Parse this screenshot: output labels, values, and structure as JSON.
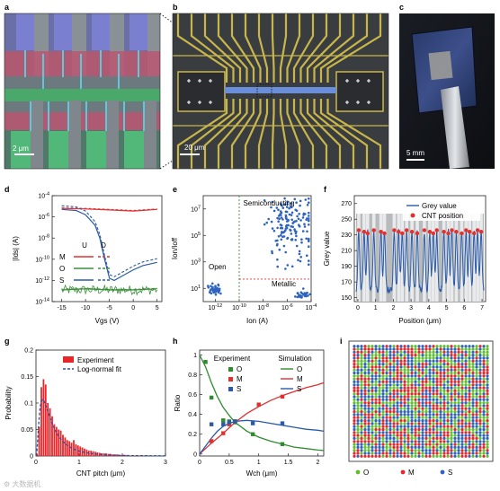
{
  "panels": {
    "a": {
      "letter": "a",
      "scale_bar": "2 μm"
    },
    "b": {
      "letter": "b",
      "scale_bar": "20 μm"
    },
    "c": {
      "letter": "c",
      "scale_bar": "5 mm"
    },
    "d": {
      "letter": "d",
      "legend_header_u": "U",
      "legend_header_d": "D",
      "legend": [
        {
          "label": "M",
          "color": "#e03030"
        },
        {
          "label": "O",
          "color": "#3a8f3a"
        },
        {
          "label": "S",
          "color": "#2a5aa8"
        }
      ],
      "ylabel": "|Ids| (A)",
      "xlabel": "Vgs (V)"
    },
    "e": {
      "letter": "e",
      "annotations": [
        "Semiconducting",
        "Open",
        "Metallic"
      ],
      "ylabel": "Ion/Ioff",
      "xlabel": "Ion (A)"
    },
    "f": {
      "letter": "f",
      "legend": [
        "Grey value",
        "CNT position"
      ],
      "ylabel": "Grey value",
      "xlabel": "Position (μm)"
    },
    "g": {
      "letter": "g",
      "legend": [
        "Experiment",
        "Log-normal fit"
      ],
      "ylabel": "Probability",
      "xlabel": "CNT pitch (μm)"
    },
    "h": {
      "letter": "h",
      "legend_header_exp": "Experiment",
      "legend_header_sim": "Simulation",
      "legend": [
        {
          "label": "O",
          "color": "#2e8b2e"
        },
        {
          "label": "M",
          "color": "#e03030"
        },
        {
          "label": "S",
          "color": "#2a5aa8"
        }
      ],
      "ylabel": "Ratio",
      "xlabel": "Wch (μm)"
    },
    "i": {
      "letter": "i",
      "legend": [
        {
          "label": "O",
          "color": "#5cc02c"
        },
        {
          "label": "M",
          "color": "#e8262a"
        },
        {
          "label": "S",
          "color": "#2f63c0"
        }
      ]
    }
  },
  "chart_data": [
    {
      "panel": "d",
      "type": "line",
      "xlim": [
        -17,
        6
      ],
      "ylim_log10": [
        -14,
        -4
      ],
      "xticks": [
        -15,
        -10,
        -5,
        0,
        5
      ],
      "yticks_exp": [
        -14,
        -12,
        -10,
        -8,
        -6,
        -4
      ],
      "series": [
        {
          "name": "M",
          "color": "#e03030",
          "x": [
            -15,
            -10,
            -5,
            0,
            5
          ],
          "log10_y": [
            -5.2,
            -5.25,
            -5.35,
            -5.45,
            -5.3
          ]
        },
        {
          "name": "S",
          "color": "#2a5aa8",
          "x": [
            -15,
            -12,
            -10,
            -8,
            -7,
            -6,
            -5,
            -4,
            -2,
            0,
            2,
            5
          ],
          "log10_y": [
            -5.3,
            -5.4,
            -5.8,
            -6.8,
            -8,
            -10,
            -11.8,
            -12,
            -11.5,
            -11,
            -10.6,
            -10.3
          ]
        },
        {
          "name": "O",
          "color": "#3a8f3a",
          "x": [
            -15,
            -10,
            -5,
            0,
            5
          ],
          "log10_y": [
            -12.9,
            -12.8,
            -12.9,
            -12.9,
            -12.8
          ]
        }
      ]
    },
    {
      "panel": "e",
      "type": "scatter",
      "xlim_log10": [
        -13,
        -4
      ],
      "ylim_log10": [
        0,
        8
      ],
      "xticks_exp": [
        -12,
        -10,
        -8,
        -6,
        -4
      ],
      "yticks_exp": [
        1,
        3,
        5,
        7
      ],
      "threshold_x_log10": -10,
      "threshold_y_log10": 1.7,
      "clusters": [
        {
          "name": "Open",
          "center_log10": [
            -12,
            0.9
          ],
          "count": 50
        },
        {
          "name": "Semiconducting",
          "center_log10": [
            -5.7,
            5.8
          ],
          "count": 160
        },
        {
          "name": "Metallic",
          "center_log10": [
            -4.7,
            0.5
          ],
          "count": 30
        }
      ]
    },
    {
      "panel": "f",
      "type": "line",
      "xlim": [
        -0.2,
        7.2
      ],
      "ylim": [
        145,
        280
      ],
      "xticks": [
        0,
        1,
        2,
        3,
        4,
        5,
        6,
        7
      ],
      "yticks": [
        150,
        170,
        190,
        210,
        230,
        250,
        270
      ],
      "cnt_positions": [
        0.05,
        0.35,
        0.55,
        0.9,
        1.3,
        1.5,
        2.05,
        2.3,
        2.5,
        2.75,
        3.05,
        3.35,
        3.75,
        4.05,
        4.25,
        4.45,
        4.85,
        5.1,
        5.3,
        5.55,
        5.85,
        6.1,
        6.3,
        6.55,
        6.75,
        6.95
      ]
    },
    {
      "panel": "g",
      "type": "bar",
      "xlim": [
        0,
        3
      ],
      "ylim": [
        0,
        0.2
      ],
      "xticks": [
        0,
        1,
        2,
        3
      ],
      "yticks": [
        0,
        0.05,
        0.1,
        0.15,
        0.2
      ],
      "bin_width": 0.05,
      "values": [
        0.004,
        0.055,
        0.13,
        0.145,
        0.135,
        0.1,
        0.09,
        0.075,
        0.06,
        0.055,
        0.05,
        0.048,
        0.04,
        0.035,
        0.03,
        0.028,
        0.025,
        0.03,
        0.022,
        0.02,
        0.018,
        0.016,
        0.014,
        0.012,
        0.01,
        0.01,
        0.009,
        0.008,
        0.007,
        0.006,
        0.005,
        0.005,
        0.005,
        0.004,
        0.004,
        0.003,
        0.003,
        0.003,
        0.002,
        0.002,
        0.002,
        0.002,
        0.001,
        0.001,
        0.001,
        0.001,
        0.001,
        0.001,
        0.001,
        0.001
      ],
      "fit": {
        "name": "Log-normal fit",
        "mu": -1.15,
        "sigma": 0.85
      }
    },
    {
      "panel": "h",
      "type": "scatter",
      "xlim": [
        0,
        2.1
      ],
      "ylim": [
        -0.02,
        1.05
      ],
      "xticks": [
        0,
        0.5,
        1,
        1.5,
        2
      ],
      "yticks": [
        0,
        0.2,
        0.4,
        0.6,
        0.8,
        1
      ],
      "series": [
        {
          "name": "O",
          "color": "#2e8b2e",
          "x": [
            0.1,
            0.2,
            0.4,
            0.5,
            0.6,
            0.9,
            1.4
          ],
          "y": [
            0.93,
            0.57,
            0.34,
            0.33,
            0.32,
            0.2,
            0.1
          ]
        },
        {
          "name": "M",
          "color": "#e03030",
          "x": [
            0.2,
            0.4,
            0.5,
            0.6,
            1.0,
            1.4
          ],
          "y": [
            0.13,
            0.21,
            0.3,
            0.33,
            0.5,
            0.58
          ]
        },
        {
          "name": "S",
          "color": "#2a5aa8",
          "x": [
            0.2,
            0.4,
            0.5,
            0.6,
            0.9,
            1.4
          ],
          "y": [
            0.3,
            0.3,
            0.32,
            0.33,
            0.31,
            0.31
          ]
        }
      ],
      "sim": [
        {
          "name": "O",
          "color": "#2e8b2e",
          "x": [
            0.0,
            0.1,
            0.2,
            0.3,
            0.4,
            0.5,
            0.6,
            0.8,
            1.0,
            1.2,
            1.4,
            1.6,
            1.8,
            2.0,
            2.1
          ],
          "y": [
            1.0,
            0.88,
            0.72,
            0.58,
            0.47,
            0.39,
            0.32,
            0.23,
            0.17,
            0.13,
            0.1,
            0.07,
            0.055,
            0.04,
            0.035
          ]
        },
        {
          "name": "M",
          "color": "#e03030",
          "x": [
            0.0,
            0.2,
            0.4,
            0.6,
            0.8,
            1.0,
            1.2,
            1.4,
            1.6,
            1.8,
            2.0,
            2.1
          ],
          "y": [
            0.0,
            0.11,
            0.21,
            0.32,
            0.41,
            0.48,
            0.54,
            0.59,
            0.63,
            0.67,
            0.7,
            0.72
          ]
        },
        {
          "name": "S",
          "color": "#2a5aa8",
          "x": [
            0.0,
            0.1,
            0.2,
            0.3,
            0.4,
            0.5,
            0.6,
            0.8,
            1.0,
            1.2,
            1.4,
            1.6,
            1.8,
            2.0,
            2.1
          ],
          "y": [
            0.0,
            0.08,
            0.16,
            0.23,
            0.28,
            0.31,
            0.33,
            0.34,
            0.33,
            0.31,
            0.29,
            0.27,
            0.25,
            0.24,
            0.23
          ]
        }
      ]
    },
    {
      "panel": "i",
      "type": "heatmap",
      "categories": [
        "O",
        "M",
        "S"
      ],
      "colors": [
        "#5cc02c",
        "#e8262a",
        "#2f63c0"
      ],
      "rows": 38,
      "cols": 38
    }
  ],
  "watermark": "⚙ 大数据机"
}
